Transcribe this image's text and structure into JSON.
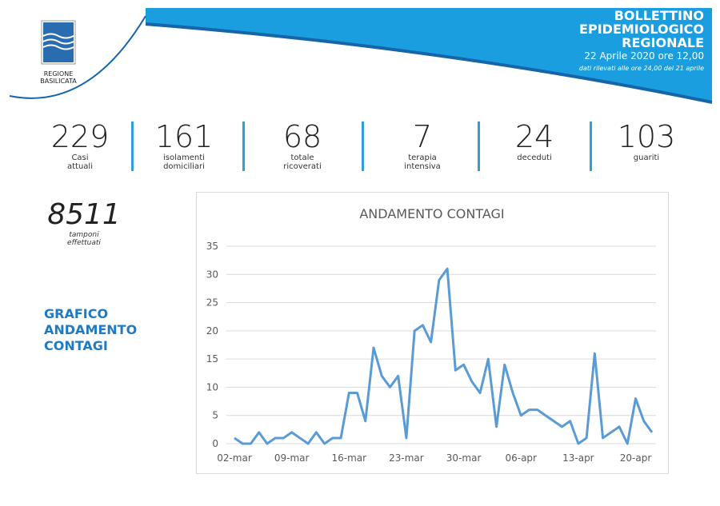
{
  "header": {
    "logo_text": [
      "REGIONE",
      "BASILICATA"
    ],
    "title": [
      "BOLLETTINO",
      "EPIDEMIOLOGICO",
      "REGIONALE"
    ],
    "date": "22 Aprile 2020 ore 12,00",
    "note": "dati rilevati alle ore 24,00 del 21 aprile"
  },
  "stats": [
    {
      "value": "229",
      "label": "Casi\nattuali"
    },
    {
      "value": "161",
      "label": "isolamenti\ndomiciliari"
    },
    {
      "value": "68",
      "label": "totale\nricoverati"
    },
    {
      "value": "7",
      "label": "terapia\nintensiva"
    },
    {
      "value": "24",
      "label": "deceduti"
    },
    {
      "value": "103",
      "label": "guariti"
    }
  ],
  "tamponi": {
    "value": "8511",
    "label": "tamponi\neffettuati"
  },
  "section_title": "GRAFICO\nANDAMENTO\nCONTAGI",
  "chart_data": {
    "type": "line",
    "title": "ANDAMENTO CONTAGI",
    "categories": [
      "02-mar",
      null,
      null,
      null,
      null,
      null,
      null,
      "09-mar",
      null,
      null,
      null,
      null,
      null,
      null,
      "16-mar",
      null,
      null,
      null,
      null,
      null,
      null,
      "23-mar",
      null,
      null,
      null,
      null,
      null,
      null,
      "30-mar",
      null,
      null,
      null,
      null,
      null,
      null,
      "06-apr",
      null,
      null,
      null,
      null,
      null,
      null,
      "13-apr",
      null,
      null,
      null,
      null,
      null,
      null,
      "20-apr",
      null,
      null
    ],
    "series": [
      {
        "name": "Contagi",
        "color": "#5b9bd5",
        "values": [
          1,
          0,
          0,
          2,
          0,
          1,
          1,
          2,
          1,
          0,
          2,
          0,
          1,
          1,
          9,
          9,
          4,
          17,
          12,
          10,
          12,
          1,
          20,
          21,
          18,
          29,
          31,
          13,
          14,
          11,
          9,
          15,
          3,
          14,
          9,
          5,
          6,
          6,
          5,
          4,
          3,
          4,
          0,
          1,
          16,
          1,
          2,
          3,
          0,
          8,
          4,
          2
        ]
      }
    ],
    "ylim": [
      0,
      35
    ],
    "yticks": [
      0,
      5,
      10,
      15,
      20,
      25,
      30,
      35
    ],
    "grid": true
  }
}
